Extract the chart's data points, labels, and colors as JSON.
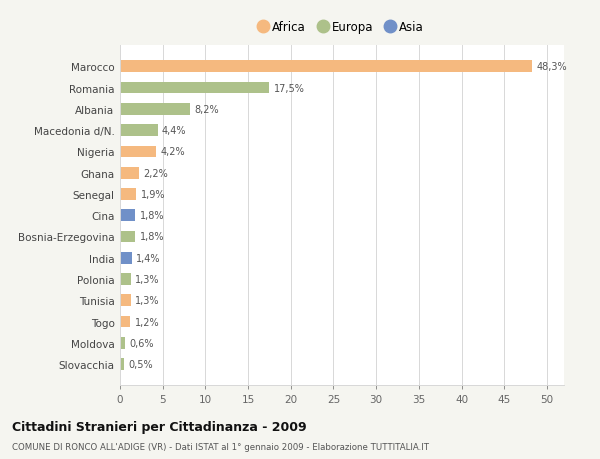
{
  "categories": [
    "Marocco",
    "Romania",
    "Albania",
    "Macedonia d/N.",
    "Nigeria",
    "Ghana",
    "Senegal",
    "Cina",
    "Bosnia-Erzegovina",
    "India",
    "Polonia",
    "Tunisia",
    "Togo",
    "Moldova",
    "Slovacchia"
  ],
  "values": [
    48.3,
    17.5,
    8.2,
    4.4,
    4.2,
    2.2,
    1.9,
    1.8,
    1.8,
    1.4,
    1.3,
    1.3,
    1.2,
    0.6,
    0.5
  ],
  "labels": [
    "48,3%",
    "17,5%",
    "8,2%",
    "4,4%",
    "4,2%",
    "2,2%",
    "1,9%",
    "1,8%",
    "1,8%",
    "1,4%",
    "1,3%",
    "1,3%",
    "1,2%",
    "0,6%",
    "0,5%"
  ],
  "colors": [
    "#f5b97f",
    "#adc18a",
    "#adc18a",
    "#adc18a",
    "#f5b97f",
    "#f5b97f",
    "#f5b97f",
    "#7090c8",
    "#adc18a",
    "#7090c8",
    "#adc18a",
    "#f5b97f",
    "#f5b97f",
    "#adc18a",
    "#adc18a"
  ],
  "legend_labels": [
    "Africa",
    "Europa",
    "Asia"
  ],
  "legend_colors": [
    "#f5b97f",
    "#adc18a",
    "#7090c8"
  ],
  "title": "Cittadini Stranieri per Cittadinanza - 2009",
  "subtitle": "COMUNE DI RONCO ALL'ADIGE (VR) - Dati ISTAT al 1° gennaio 2009 - Elaborazione TUTTITALIA.IT",
  "xlim": [
    0,
    52
  ],
  "xticks": [
    0,
    5,
    10,
    15,
    20,
    25,
    30,
    35,
    40,
    45,
    50
  ],
  "background_color": "#f5f5f0",
  "plot_bg_color": "#ffffff",
  "grid_color": "#d8d8d8",
  "bar_height": 0.55
}
